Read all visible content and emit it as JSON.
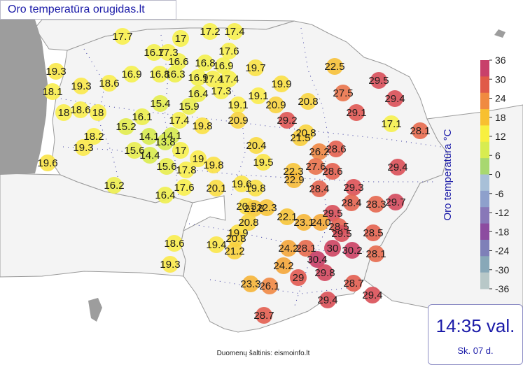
{
  "title": "Oro temperatūra orugidas.lt",
  "legend": {
    "title": "Oro temperatūra °C",
    "ticks": [
      "36",
      "30",
      "24",
      "18",
      "12",
      "6",
      "0",
      "-6",
      "-12",
      "-18",
      "-24",
      "-30",
      "-36"
    ],
    "colors": [
      "#c8406a",
      "#e05a48",
      "#f08a40",
      "#f8c030",
      "#f8f040",
      "#d8ec50",
      "#a8d870",
      "#a8c0d8",
      "#8ea0cc",
      "#8878b8",
      "#8c4ca0",
      "#7e80b8",
      "#88a8b8",
      "#b8c8c8"
    ]
  },
  "time": "14:35 val.",
  "day": "Sk. 07 d.",
  "source": "Duomenų šaltinis: eismoinfo.lt",
  "stations": [
    {
      "t": "17.7"
    },
    {
      "t": "17"
    },
    {
      "t": "17.2"
    },
    {
      "t": "17.4"
    },
    {
      "t": "16.7"
    },
    {
      "t": "17.3"
    },
    {
      "t": "17.6"
    },
    {
      "t": "19.3"
    },
    {
      "t": "16.6"
    },
    {
      "t": "16.8"
    },
    {
      "t": "16.9"
    },
    {
      "t": "22.5"
    },
    {
      "t": "29.5"
    },
    {
      "t": "19.7"
    },
    {
      "t": "18.1"
    },
    {
      "t": "19.3"
    },
    {
      "t": "18.6"
    },
    {
      "t": "16.9"
    },
    {
      "t": "16.8"
    },
    {
      "t": "16.3"
    },
    {
      "t": "17.4"
    },
    {
      "t": "16.9"
    },
    {
      "t": "17.4"
    },
    {
      "t": "19.9"
    },
    {
      "t": "27.5"
    },
    {
      "t": "29.4"
    },
    {
      "t": "17.3"
    },
    {
      "t": "16.4"
    },
    {
      "t": "19.1"
    },
    {
      "t": "18"
    },
    {
      "t": "18.6"
    },
    {
      "t": "18"
    },
    {
      "t": "16.1"
    },
    {
      "t": "15.4"
    },
    {
      "t": "15.9"
    },
    {
      "t": "19.1"
    },
    {
      "t": "20.9"
    },
    {
      "t": "20.8"
    },
    {
      "t": "29.1"
    },
    {
      "t": "17.1"
    },
    {
      "t": "15.2"
    },
    {
      "t": "17.4"
    },
    {
      "t": "19.8"
    },
    {
      "t": "20.9"
    },
    {
      "t": "29.2"
    },
    {
      "t": "28.1"
    },
    {
      "t": "18.2"
    },
    {
      "t": "14.1"
    },
    {
      "t": "14.1"
    },
    {
      "t": "13.8"
    },
    {
      "t": "20.8"
    },
    {
      "t": "21.5"
    },
    {
      "t": "19.3"
    },
    {
      "t": "19.6"
    },
    {
      "t": "15.6"
    },
    {
      "t": "14.4"
    },
    {
      "t": "17"
    },
    {
      "t": "19"
    },
    {
      "t": "20.4"
    },
    {
      "t": "26.2"
    },
    {
      "t": "28.6"
    },
    {
      "t": "15.6"
    },
    {
      "t": "17.8"
    },
    {
      "t": "19.8"
    },
    {
      "t": "19.5"
    },
    {
      "t": "22.3"
    },
    {
      "t": "27.6"
    },
    {
      "t": "28.6"
    },
    {
      "t": "29.4"
    },
    {
      "t": "22.9"
    },
    {
      "t": "16.2"
    },
    {
      "t": "16.4"
    },
    {
      "t": "17.6"
    },
    {
      "t": "20.1"
    },
    {
      "t": "19.6"
    },
    {
      "t": "19.8"
    },
    {
      "t": "28.4"
    },
    {
      "t": "29.3"
    },
    {
      "t": "28.4"
    },
    {
      "t": "28.3"
    },
    {
      "t": "29.7"
    },
    {
      "t": "20.3"
    },
    {
      "t": "21.8"
    },
    {
      "t": "22.3"
    },
    {
      "t": "20.8"
    },
    {
      "t": "22.1"
    },
    {
      "t": "23.1"
    },
    {
      "t": "29.5"
    },
    {
      "t": "24.0"
    },
    {
      "t": "28.5"
    },
    {
      "t": "29.5"
    },
    {
      "t": "19.9"
    },
    {
      "t": "20.8"
    },
    {
      "t": "28.5"
    },
    {
      "t": "18.6"
    },
    {
      "t": "19.4"
    },
    {
      "t": "24.2"
    },
    {
      "t": "28.1"
    },
    {
      "t": "30"
    },
    {
      "t": "30.2"
    },
    {
      "t": "28.1"
    },
    {
      "t": "21.2"
    },
    {
      "t": "30.4"
    },
    {
      "t": "19.3"
    },
    {
      "t": "24.2"
    },
    {
      "t": "29"
    },
    {
      "t": "29.8"
    },
    {
      "t": "23.3"
    },
    {
      "t": "26.1"
    },
    {
      "t": "28.7"
    },
    {
      "t": "29.4"
    },
    {
      "t": "29.4"
    },
    {
      "t": "28.7"
    }
  ]
}
